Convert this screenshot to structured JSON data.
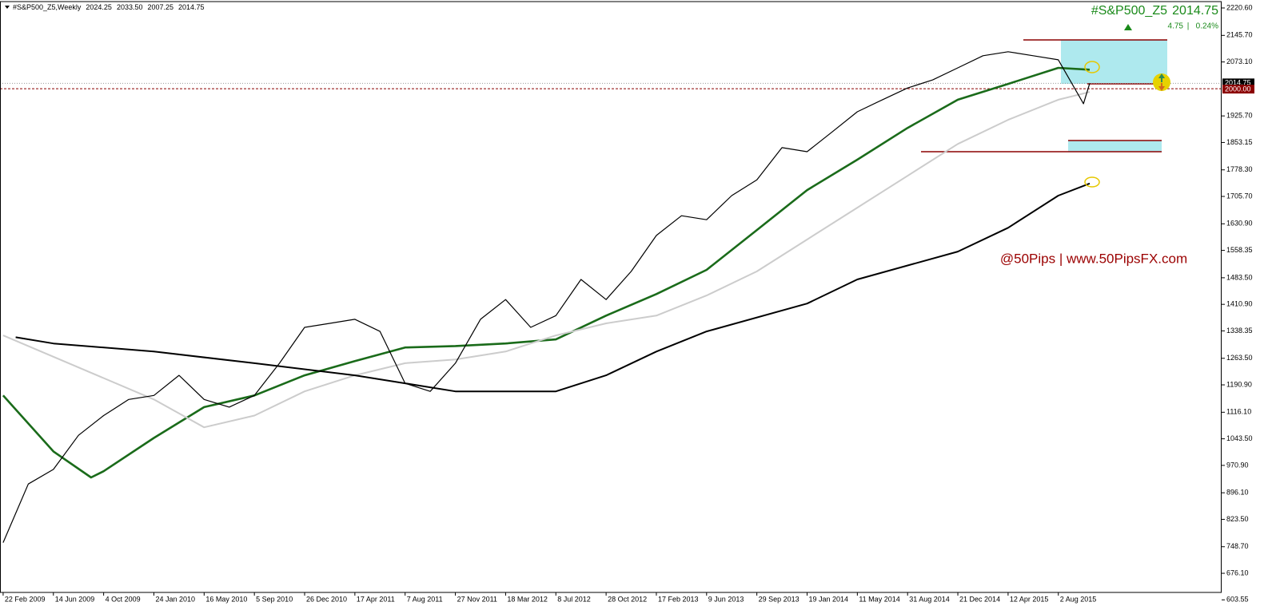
{
  "chart_data": {
    "type": "line",
    "title": "#S&P500_Z5,Weekly",
    "ohlc": [
      2024.25,
      {
        "value": 2033.5,
        "label": "2033.50"
      },
      2007.25,
      2014.75
    ],
    "symbol": "#S&P500_Z5",
    "last": 2014.75,
    "change": 4.75,
    "change_separator": "|",
    "change_pct": {
      "value": 0.24,
      "label": "0.24%"
    },
    "watermark": "@50Pips | www.50PipsFX.com",
    "price_marker": {
      "value": 2014.75,
      "label": "2014.75"
    },
    "level_marker": {
      "value": 2000,
      "label": "2000.00"
    },
    "xlim": [
      "2009-02-15",
      "2016-07-31"
    ],
    "xticks": [
      {
        "value": "2009-02-22",
        "label": "22 Feb 2009"
      },
      {
        "value": "2009-06-14",
        "label": "14 Jun 2009"
      },
      {
        "value": "2009-10-04",
        "label": "4 Oct 2009"
      },
      {
        "value": "2010-01-24",
        "label": "24 Jan 2010"
      },
      {
        "value": "2010-05-16",
        "label": "16 May 2010"
      },
      {
        "value": "2010-09-05",
        "label": "5 Sep 2010"
      },
      {
        "value": "2010-12-26",
        "label": "26 Dec 2010"
      },
      {
        "value": "2011-04-17",
        "label": "17 Apr 2011"
      },
      {
        "value": "2011-08-07",
        "label": "7 Aug 2011"
      },
      {
        "value": "2011-11-27",
        "label": "27 Nov 2011"
      },
      {
        "value": "2012-03-18",
        "label": "18 Mar 2012"
      },
      {
        "value": "2012-07-08",
        "label": "8 Jul 2012"
      },
      {
        "value": "2012-10-28",
        "label": "28 Oct 2012"
      },
      {
        "value": "2013-02-17",
        "label": "17 Feb 2013"
      },
      {
        "value": "2013-06-09",
        "label": "9 Jun 2013"
      },
      {
        "value": "2013-09-29",
        "label": "29 Sep 2013"
      },
      {
        "value": "2014-01-19",
        "label": "19 Jan 2014"
      },
      {
        "value": "2014-05-11",
        "label": "11 May 2014"
      },
      {
        "value": "2014-08-31",
        "label": "31 Aug 2014"
      },
      {
        "value": "2014-12-21",
        "label": "21 Dec 2014"
      },
      {
        "value": "2015-04-12",
        "label": "12 Apr 2015"
      },
      {
        "value": "2015-08-02",
        "label": "2 Aug 2015"
      }
    ],
    "ylim": [
      602,
      2238
    ],
    "yticks": [
      {
        "value": 2220.6,
        "label": "2220.60"
      },
      {
        "value": 2145.7,
        "label": "2145.70"
      },
      {
        "value": 2073.1,
        "label": "2073.10"
      },
      {
        "value": 1925.7,
        "label": "1925.70"
      },
      {
        "value": 1853.15,
        "label": "1853.15"
      },
      {
        "value": 1778.3,
        "label": "1778.30"
      },
      {
        "value": 1705.7,
        "label": "1705.70"
      },
      {
        "value": 1630.9,
        "label": "1630.90"
      },
      {
        "value": 1558.35,
        "label": "1558.35"
      },
      {
        "value": 1483.5,
        "label": "1483.50"
      },
      {
        "value": 1410.9,
        "label": "1410.90"
      },
      {
        "value": 1338.35,
        "label": "1338.35"
      },
      {
        "value": 1263.5,
        "label": "1263.50"
      },
      {
        "value": 1190.9,
        "label": "1190.90"
      },
      {
        "value": 1116.1,
        "label": "1116.10"
      },
      {
        "value": 1043.5,
        "label": "1043.50"
      },
      {
        "value": 970.9,
        "label": "970.90"
      },
      {
        "value": 896.1,
        "label": "896.10"
      },
      {
        "value": 823.5,
        "label": "823.50"
      },
      {
        "value": 748.7,
        "label": "748.70"
      },
      {
        "value": 676.1,
        "label": "676.10"
      },
      {
        "value": 603.55,
        "label": "603.55"
      }
    ],
    "series": [
      {
        "color": "#000000",
        "width": 1.2,
        "x": [
          "2009-02-22",
          "2009-04-19",
          "2009-06-14",
          "2009-08-09",
          "2009-10-04",
          "2009-11-29",
          "2010-01-24",
          "2010-03-21",
          "2010-05-16",
          "2010-07-11",
          "2010-09-05",
          "2010-10-31",
          "2010-12-26",
          "2011-02-20",
          "2011-04-17",
          "2011-06-12",
          "2011-08-07",
          "2011-10-02",
          "2011-11-27",
          "2012-01-22",
          "2012-03-18",
          "2012-05-13",
          "2012-07-08",
          "2012-09-02",
          "2012-10-28",
          "2012-12-23",
          "2013-02-17",
          "2013-04-14",
          "2013-06-09",
          "2013-08-04",
          "2013-09-29",
          "2013-11-24",
          "2014-01-19",
          "2014-03-16",
          "2014-05-11",
          "2014-07-06",
          "2014-08-31",
          "2014-10-26",
          "2014-12-21",
          "2015-02-15",
          "2015-04-12",
          "2015-06-07",
          "2015-08-02",
          "2015-09-27",
          "2015-10-11"
        ],
        "values": [
          760,
          920,
          960,
          1053,
          1107,
          1151,
          1162,
          1217,
          1151,
          1130,
          1162,
          1250,
          1348,
          1359,
          1370,
          1337,
          1195,
          1173,
          1250,
          1370,
          1424,
          1348,
          1380,
          1479,
          1424,
          1501,
          1599,
          1653,
          1642,
          1708,
          1751,
          1839,
          1828,
          1882,
          1937,
          1970,
          2002,
          2024,
          2057,
          2090,
          2101,
          2090,
          2079,
          1959,
          2014.75
        ]
      },
      {
        "color": "#1a6b1a",
        "width": 2.6,
        "x": [
          "2009-02-22",
          "2009-06-14",
          "2009-09-06",
          "2009-10-04",
          "2010-01-24",
          "2010-05-16",
          "2010-09-05",
          "2010-12-26",
          "2011-04-17",
          "2011-08-07",
          "2011-11-27",
          "2012-03-18",
          "2012-07-08",
          "2012-10-28",
          "2013-02-17",
          "2013-06-09",
          "2013-09-29",
          "2014-01-19",
          "2014-05-11",
          "2014-08-31",
          "2014-12-21",
          "2015-04-12",
          "2015-08-02",
          "2015-10-11"
        ],
        "values": [
          1162,
          1009,
          938,
          955,
          1046,
          1130,
          1162,
          1217,
          1256,
          1293,
          1297,
          1304,
          1315,
          1380,
          1439,
          1505,
          1614,
          1723,
          1806,
          1893,
          1970,
          2013,
          2057,
          2052
        ]
      },
      {
        "color": "#cccccc",
        "width": 2,
        "x": [
          "2009-02-22",
          "2010-01-24",
          "2010-05-16",
          "2010-09-05",
          "2010-12-26",
          "2011-04-17",
          "2011-08-07",
          "2011-11-27",
          "2012-03-18",
          "2012-07-08",
          "2012-10-28",
          "2013-02-17",
          "2013-06-09",
          "2013-09-29",
          "2014-01-19",
          "2014-05-11",
          "2014-08-31",
          "2014-12-21",
          "2015-04-12",
          "2015-08-02",
          "2015-10-11"
        ],
        "values": [
          1326,
          1151,
          1075,
          1107,
          1173,
          1217,
          1250,
          1260,
          1282,
          1326,
          1359,
          1380,
          1435,
          1501,
          1588,
          1675,
          1762,
          1849,
          1915,
          1970,
          1991
        ]
      },
      {
        "color": "#000000",
        "width": 2,
        "x": [
          "2009-03-22",
          "2009-06-14",
          "2010-01-24",
          "2010-09-05",
          "2011-04-17",
          "2011-08-07",
          "2011-11-27",
          "2012-07-08",
          "2012-10-28",
          "2013-02-17",
          "2013-06-09",
          "2014-01-19",
          "2014-05-11",
          "2014-12-21",
          "2015-04-12",
          "2015-08-02",
          "2015-10-11"
        ],
        "values": [
          1321,
          1304,
          1282,
          1250,
          1217,
          1195,
          1173,
          1173,
          1217,
          1282,
          1337,
          1413,
          1479,
          1555,
          1620,
          1708,
          1741
        ]
      }
    ]
  }
}
